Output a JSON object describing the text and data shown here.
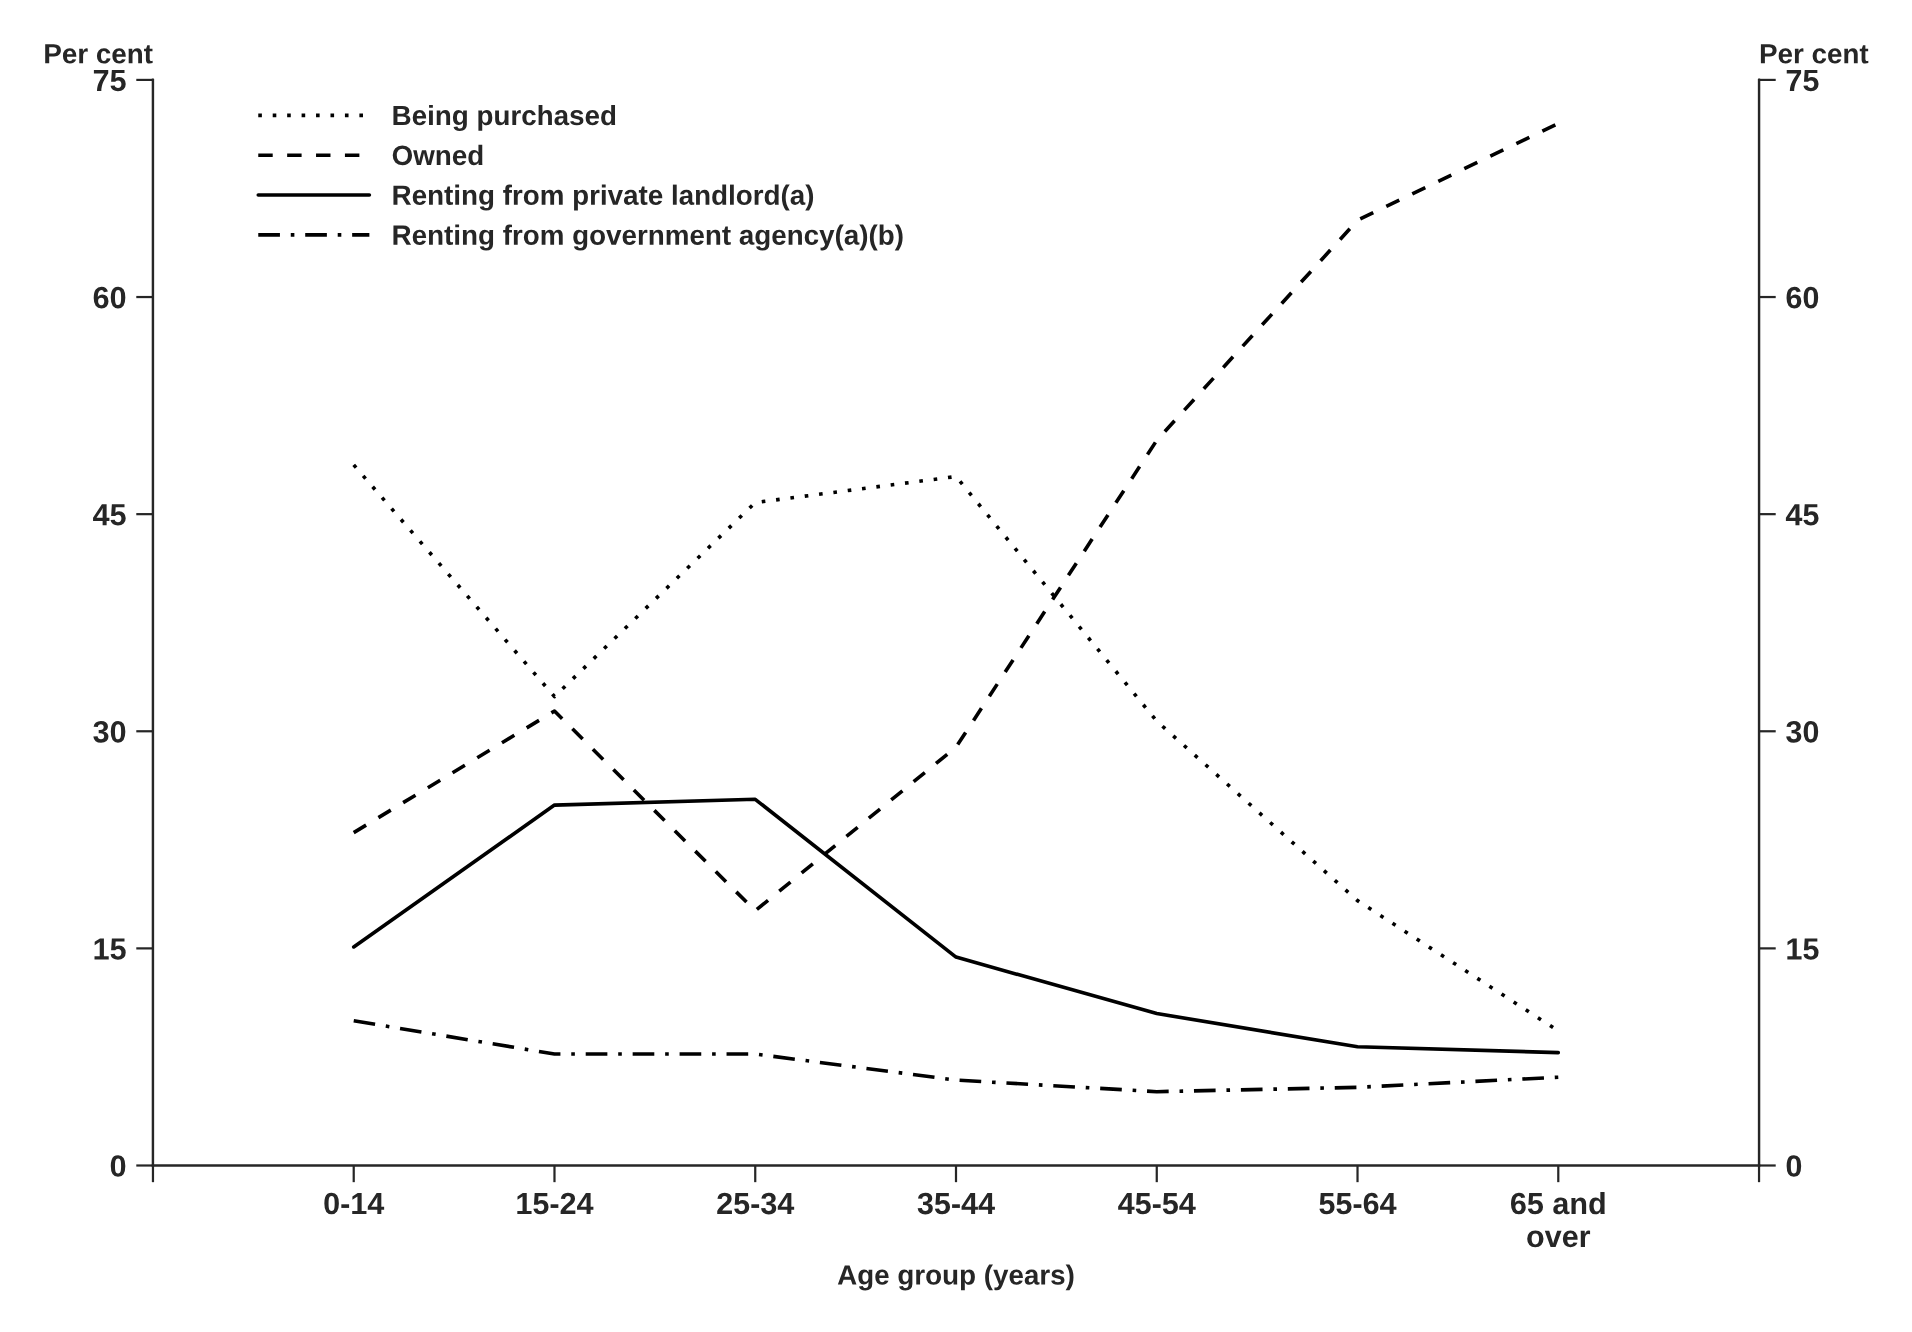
{
  "chart_data": {
    "type": "line",
    "xlabel": "Age group (years)",
    "ylabel": "Per cent",
    "y2label": "Per cent",
    "categories": [
      "0-14",
      "15-24",
      "25-34",
      "35-44",
      "45-54",
      "55-64",
      "65 and\nover"
    ],
    "series": [
      {
        "name": "Being purchased",
        "color": "#000000",
        "line_style": "dotted",
        "values": [
          48.4,
          32.4,
          45.8,
          47.6,
          30.7,
          18.3,
          9.3
        ]
      },
      {
        "name": "Owned",
        "color": "#000000",
        "line_style": "dashed",
        "values": [
          23.0,
          31.4,
          17.6,
          28.9,
          50.1,
          65.3,
          72.0
        ]
      },
      {
        "name": "Renting from private landlord(a)",
        "color": "#000000",
        "line_style": "solid",
        "values": [
          15.1,
          24.9,
          25.3,
          14.4,
          10.5,
          8.2,
          7.8
        ]
      },
      {
        "name": "Renting from government agency(a)(b)",
        "color": "#000000",
        "line_style": "dashdot",
        "values": [
          10.0,
          7.7,
          7.7,
          5.9,
          5.1,
          5.4,
          6.1
        ]
      }
    ],
    "ylim": [
      0,
      75
    ],
    "yticks": [
      0,
      15,
      30,
      45,
      60,
      75
    ],
    "y2lim": [
      0,
      75
    ],
    "y2ticks": [
      0,
      15,
      30,
      45,
      60,
      75
    ],
    "legend": "top left",
    "grid": false,
    "marker": "none"
  }
}
